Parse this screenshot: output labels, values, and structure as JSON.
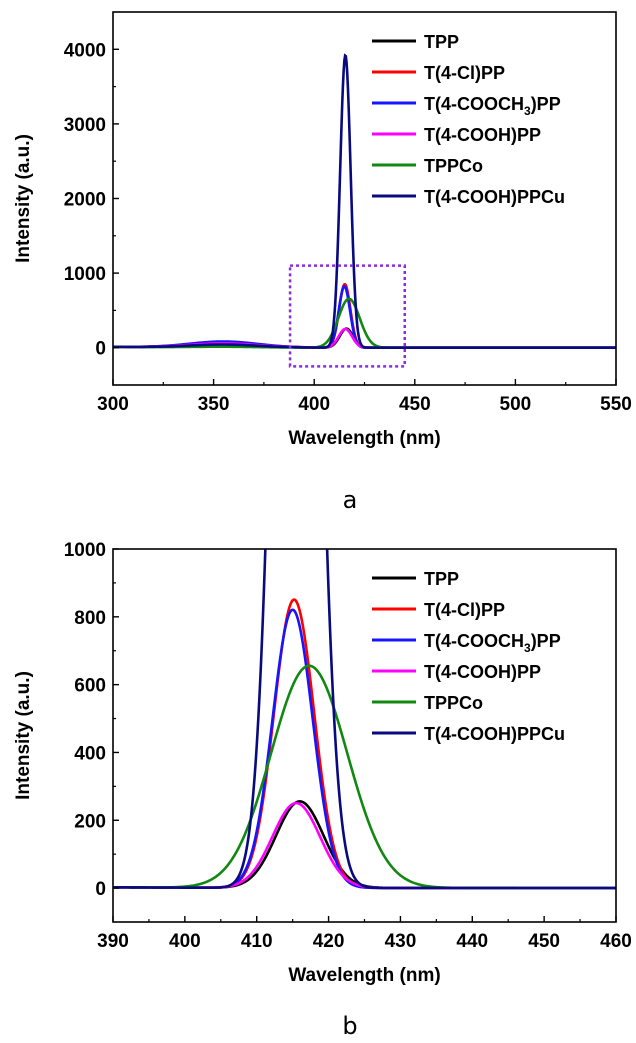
{
  "chart_data": [
    {
      "type": "line",
      "panel_label": "a",
      "xlabel": "Wavelength (nm)",
      "ylabel": "Intensity (a.u.)",
      "xlim": [
        300,
        550
      ],
      "ylim": [
        -500,
        4500
      ],
      "xticks": [
        300,
        350,
        400,
        450,
        500,
        550
      ],
      "yticks": [
        0,
        1000,
        2000,
        3000,
        4000
      ],
      "grid": false,
      "legend": "top-right",
      "zoom_box": {
        "x": [
          388,
          445
        ],
        "y": [
          -250,
          1100
        ],
        "color": "#8B2BE2"
      },
      "series": [
        {
          "name": "TPP",
          "color": "#000000",
          "peak_x": 416.0,
          "peak_y": 255,
          "sigma": 3.3,
          "uv": 60
        },
        {
          "name": "T(4-Cl)PP",
          "color": "#FF0000",
          "peak_x": 415.2,
          "peak_y": 850,
          "sigma": 2.8,
          "uv": 70
        },
        {
          "name": "T(4-COOCH3)PP",
          "color": "#1515FF",
          "peak_x": 415.0,
          "peak_y": 820,
          "sigma": 2.8,
          "uv": 80
        },
        {
          "name": "T(4-COOH)PP",
          "color": "#FF00FF",
          "peak_x": 415.5,
          "peak_y": 250,
          "sigma": 3.3,
          "uv": 55
        },
        {
          "name": "TPPCo",
          "color": "#118811",
          "peak_x": 417.3,
          "peak_y": 655,
          "sigma": 5.3,
          "uv": 10
        },
        {
          "name": "T(4-COOH)PPCu",
          "color": "#0A0A80",
          "peak_x": 415.5,
          "peak_y": 3920,
          "sigma": 2.6,
          "uv": 40
        }
      ]
    },
    {
      "type": "line",
      "panel_label": "b",
      "xlabel": "Wavelength (nm)",
      "ylabel": "Intensity (a.u.)",
      "xlim": [
        390,
        460
      ],
      "ylim": [
        -100,
        1000
      ],
      "xticks": [
        390,
        400,
        410,
        420,
        430,
        440,
        450,
        460
      ],
      "yticks": [
        0,
        200,
        400,
        600,
        800,
        1000
      ],
      "grid": false,
      "legend": "top-right",
      "series": [
        {
          "name": "TPP",
          "color": "#000000",
          "peak_x": 416.0,
          "peak_y": 255,
          "sigma": 3.3,
          "uv": 10
        },
        {
          "name": "T(4-Cl)PP",
          "color": "#FF0000",
          "peak_x": 415.2,
          "peak_y": 850,
          "sigma": 2.8,
          "uv": 10
        },
        {
          "name": "T(4-COOCH3)PP",
          "color": "#1515FF",
          "peak_x": 415.0,
          "peak_y": 820,
          "sigma": 2.8,
          "uv": 10
        },
        {
          "name": "T(4-COOH)PP",
          "color": "#FF00FF",
          "peak_x": 415.5,
          "peak_y": 250,
          "sigma": 3.3,
          "uv": 10
        },
        {
          "name": "TPPCo",
          "color": "#118811",
          "peak_x": 417.3,
          "peak_y": 655,
          "sigma": 5.3,
          "uv": 10
        },
        {
          "name": "T(4-COOH)PPCu",
          "color": "#0A0A80",
          "peak_x": 415.5,
          "peak_y": 3920,
          "sigma": 2.6,
          "uv": 10
        }
      ]
    }
  ]
}
